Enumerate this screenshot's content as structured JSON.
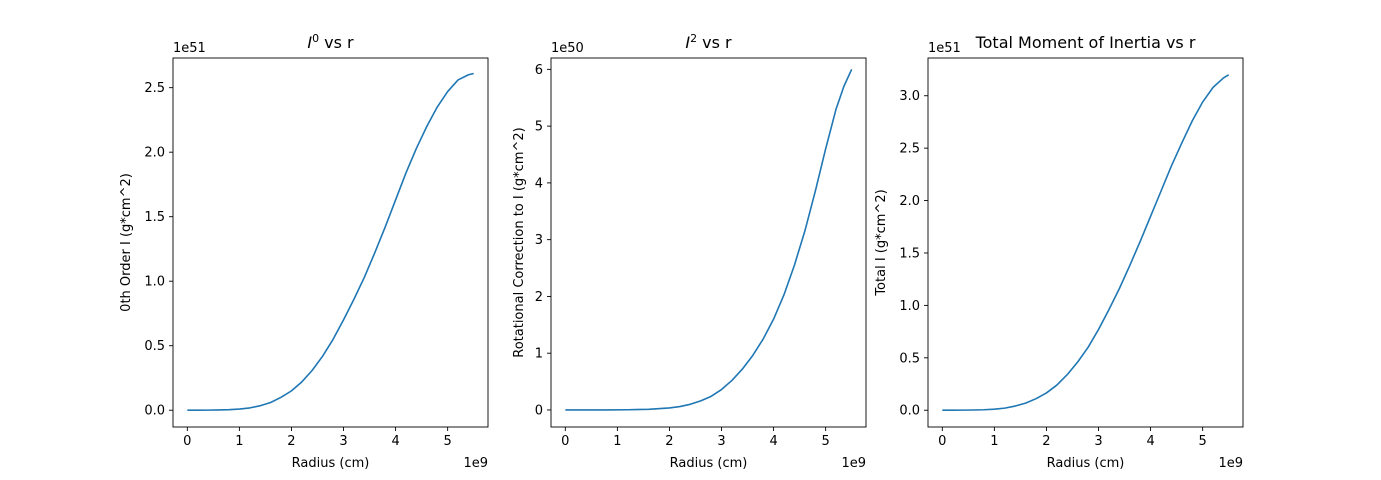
{
  "figure": {
    "background": "#ffffff",
    "line_color": "#1f77b4"
  },
  "chart_data": [
    {
      "type": "line",
      "title_base": "I",
      "title_sup": "0",
      "title_rest": " vs r",
      "xlabel": "Radius (cm)",
      "ylabel": "0th Order I (g*cm^2)",
      "x_offset_label": "1e9",
      "y_offset_label": "1e51",
      "x_scale": 1000000000.0,
      "y_scale": 1e+51,
      "xlim": [
        -0.275,
        5.775
      ],
      "ylim": [
        -0.13,
        2.73
      ],
      "xticks": [
        0,
        1,
        2,
        3,
        4,
        5
      ],
      "xtick_labels": [
        "0",
        "1",
        "2",
        "3",
        "4",
        "5"
      ],
      "yticks": [
        0,
        0.5,
        1.0,
        1.5,
        2.0,
        2.5
      ],
      "ytick_labels": [
        "0.0",
        "0.5",
        "1.0",
        "1.5",
        "2.0",
        "2.5"
      ],
      "grid": false,
      "series": [
        {
          "x": [
            0,
            0.2,
            0.4,
            0.6,
            0.8,
            1.0,
            1.2,
            1.4,
            1.6,
            1.8,
            2.0,
            2.2,
            2.4,
            2.6,
            2.8,
            3.0,
            3.2,
            3.4,
            3.6,
            3.8,
            4.0,
            4.2,
            4.4,
            4.6,
            4.8,
            5.0,
            5.2,
            5.4,
            5.5
          ],
          "y": [
            0,
            0.0002,
            0.0008,
            0.002,
            0.004,
            0.009,
            0.018,
            0.035,
            0.06,
            0.1,
            0.15,
            0.22,
            0.31,
            0.42,
            0.55,
            0.7,
            0.86,
            1.03,
            1.22,
            1.42,
            1.63,
            1.84,
            2.03,
            2.2,
            2.35,
            2.47,
            2.56,
            2.6,
            2.61
          ]
        }
      ]
    },
    {
      "type": "line",
      "title_base": "I",
      "title_sup": "2",
      "title_rest": " vs r",
      "xlabel": "Radius (cm)",
      "ylabel": "Rotational Correction to I (g*cm^2)",
      "x_offset_label": "1e9",
      "y_offset_label": "1e50",
      "x_scale": 1000000000.0,
      "y_scale": 1e+50,
      "xlim": [
        -0.275,
        5.775
      ],
      "ylim": [
        -0.3,
        6.2
      ],
      "xticks": [
        0,
        1,
        2,
        3,
        4,
        5
      ],
      "xtick_labels": [
        "0",
        "1",
        "2",
        "3",
        "4",
        "5"
      ],
      "yticks": [
        0,
        1,
        2,
        3,
        4,
        5,
        6
      ],
      "ytick_labels": [
        "0",
        "1",
        "2",
        "3",
        "4",
        "5",
        "6"
      ],
      "grid": false,
      "series": [
        {
          "x": [
            0,
            0.4,
            0.8,
            1.2,
            1.6,
            2.0,
            2.2,
            2.4,
            2.6,
            2.8,
            3.0,
            3.2,
            3.4,
            3.6,
            3.8,
            4.0,
            4.2,
            4.4,
            4.6,
            4.8,
            5.0,
            5.2,
            5.35,
            5.5
          ],
          "y": [
            0,
            0,
            0.001,
            0.004,
            0.012,
            0.035,
            0.06,
            0.1,
            0.16,
            0.24,
            0.36,
            0.52,
            0.72,
            0.96,
            1.25,
            1.6,
            2.03,
            2.55,
            3.15,
            3.85,
            4.6,
            5.3,
            5.7,
            6.0
          ]
        }
      ]
    },
    {
      "type": "line",
      "title": "Total Moment of Inertia vs r",
      "xlabel": "Radius (cm)",
      "ylabel": "Total I (g*cm^2)",
      "x_offset_label": "1e9",
      "y_offset_label": "1e51",
      "x_scale": 1000000000.0,
      "y_scale": 1e+51,
      "xlim": [
        -0.275,
        5.775
      ],
      "ylim": [
        -0.16,
        3.36
      ],
      "xticks": [
        0,
        1,
        2,
        3,
        4,
        5
      ],
      "xtick_labels": [
        "0",
        "1",
        "2",
        "3",
        "4",
        "5"
      ],
      "yticks": [
        0,
        0.5,
        1.0,
        1.5,
        2.0,
        2.5,
        3.0
      ],
      "ytick_labels": [
        "0.0",
        "0.5",
        "1.0",
        "1.5",
        "2.0",
        "2.5",
        "3.0"
      ],
      "grid": false,
      "series": [
        {
          "x": [
            0,
            0.2,
            0.4,
            0.6,
            0.8,
            1.0,
            1.2,
            1.4,
            1.6,
            1.8,
            2.0,
            2.2,
            2.4,
            2.6,
            2.8,
            3.0,
            3.2,
            3.4,
            3.6,
            3.8,
            4.0,
            4.2,
            4.4,
            4.6,
            4.8,
            5.0,
            5.2,
            5.4,
            5.5
          ],
          "y": [
            0,
            0.0002,
            0.0009,
            0.0022,
            0.0045,
            0.01,
            0.02,
            0.04,
            0.068,
            0.11,
            0.165,
            0.24,
            0.34,
            0.46,
            0.6,
            0.77,
            0.96,
            1.16,
            1.38,
            1.61,
            1.85,
            2.09,
            2.33,
            2.55,
            2.76,
            2.94,
            3.08,
            3.17,
            3.2
          ]
        }
      ]
    }
  ]
}
